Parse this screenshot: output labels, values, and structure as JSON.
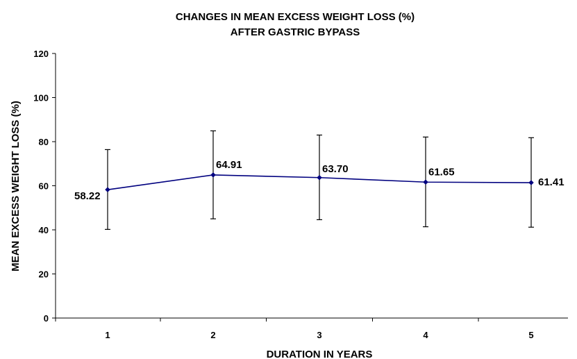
{
  "colors": {
    "series_line": "#00007f",
    "marker": "#00007f",
    "error_bar": "#000000",
    "axis": "#000000"
  },
  "chart_data": {
    "type": "line",
    "title_lines": [
      "CHANGES IN MEAN EXCESS WEIGHT LOSS (%)",
      "AFTER GASTRIC BYPASS"
    ],
    "xlabel": "DURATION IN YEARS",
    "ylabel": "MEAN EXCESS WEIGHT LOSS (%)",
    "categories": [
      "1",
      "2",
      "3",
      "4",
      "5"
    ],
    "series": [
      {
        "values": [
          58.22,
          64.91,
          63.7,
          61.65,
          61.41
        ],
        "value_labels": [
          "58.22",
          "64.91",
          "63.70",
          "61.65",
          "61.41"
        ],
        "error_low": [
          40.2,
          45.0,
          44.6,
          41.4,
          41.2
        ],
        "error_high": [
          76.4,
          84.9,
          83.0,
          82.1,
          81.8
        ]
      }
    ],
    "ylim": [
      0,
      120
    ],
    "yticks": [
      0,
      20,
      40,
      60,
      80,
      100,
      120
    ],
    "grid": false,
    "legend": "none"
  }
}
